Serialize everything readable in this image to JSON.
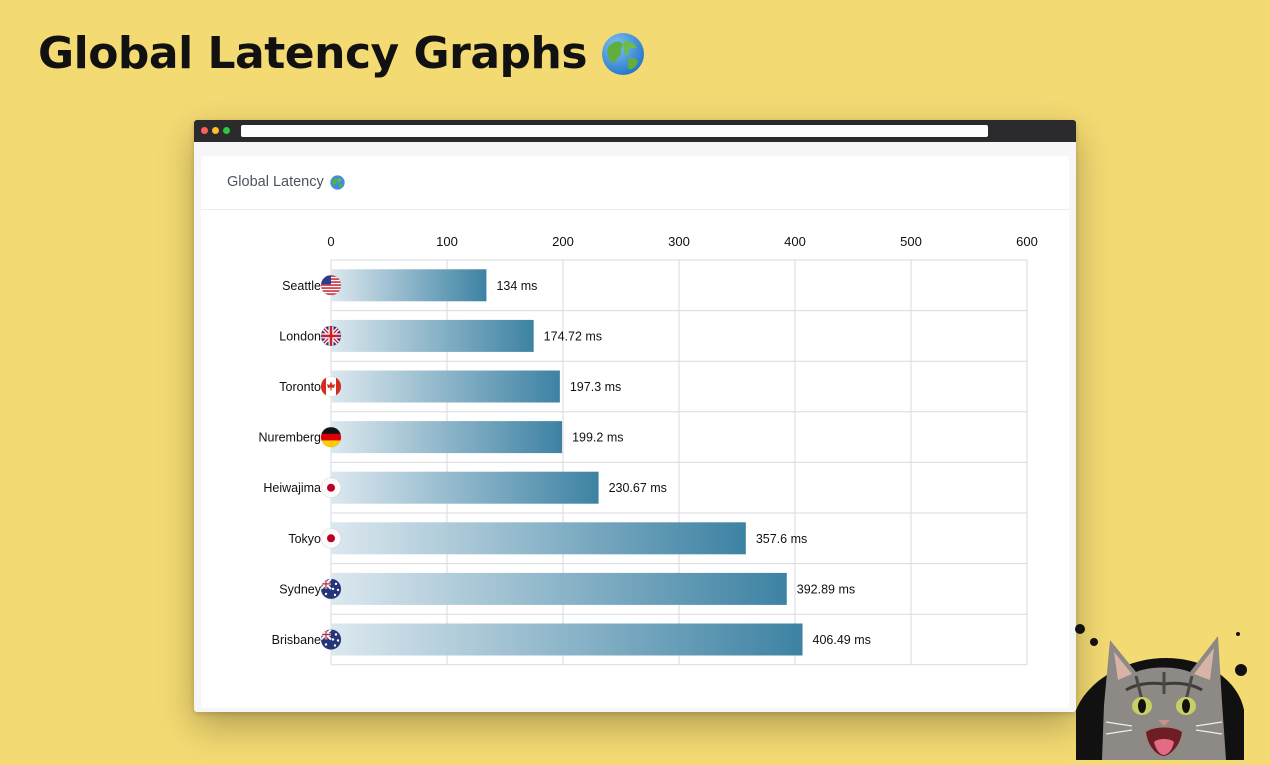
{
  "page": {
    "headline": "Global Latency Graphs",
    "headline_emoji": "globe-icon"
  },
  "window": {
    "controls": [
      "close",
      "minimize",
      "maximize"
    ]
  },
  "card": {
    "title": "Global Latency",
    "title_emoji": "globe-icon"
  },
  "colors": {
    "background": "#f4da72",
    "bar_start": "#dce8ef",
    "bar_end": "#3d82a3",
    "grid": "#d9d9df"
  },
  "chart_data": {
    "type": "bar",
    "orientation": "horizontal",
    "title": "Global Latency",
    "xlabel": "",
    "ylabel": "",
    "xlim": [
      0,
      600
    ],
    "ticks": [
      0,
      100,
      200,
      300,
      400,
      500,
      600
    ],
    "tick_position": "top",
    "grid": true,
    "unit_suffix": "ms",
    "categories": [
      "Seattle",
      "London",
      "Toronto",
      "Nuremberg",
      "Heiwajima",
      "Tokyo",
      "Sydney",
      "Brisbane"
    ],
    "flags": [
      "us",
      "gb",
      "ca",
      "de",
      "jp",
      "jp",
      "au",
      "au"
    ],
    "values": [
      134,
      174.72,
      197.3,
      199.2,
      230.67,
      357.6,
      392.89,
      406.49
    ],
    "value_labels": [
      "134 ms",
      "174.72 ms",
      "197.3 ms",
      "199.2 ms",
      "230.67 ms",
      "357.6 ms",
      "392.89 ms",
      "406.49 ms"
    ]
  }
}
